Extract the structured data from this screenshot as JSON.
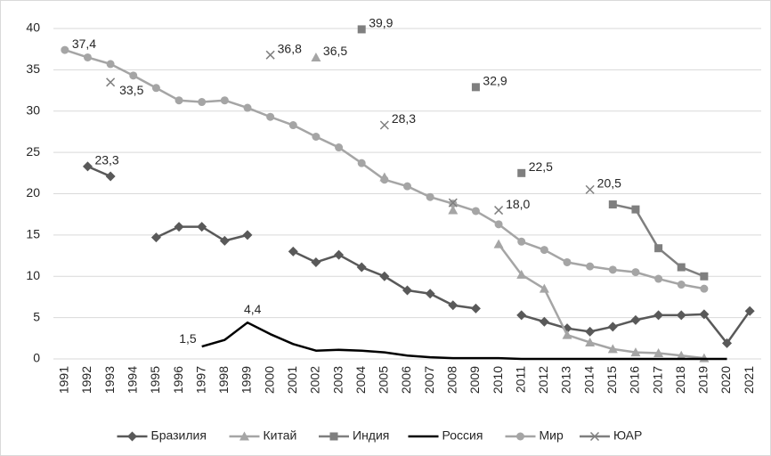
{
  "chart_data": {
    "type": "line",
    "categories": [
      "1991",
      "1992",
      "1993",
      "1994",
      "1995",
      "1996",
      "1997",
      "1998",
      "1999",
      "2000",
      "2001",
      "2002",
      "2003",
      "2004",
      "2005",
      "2006",
      "2007",
      "2008",
      "2009",
      "2010",
      "2011",
      "2012",
      "2013",
      "2014",
      "2015",
      "2016",
      "2017",
      "2018",
      "2019",
      "2020",
      "2021"
    ],
    "ylim": [
      0,
      40
    ],
    "yticks": [
      0,
      5,
      10,
      15,
      20,
      25,
      30,
      35,
      40
    ],
    "grid": true,
    "legend": "bottom",
    "series": [
      {
        "name": "Бразилия",
        "color": "#595959",
        "marker": "diamond",
        "values": [
          null,
          23.3,
          22.1,
          null,
          14.7,
          16.0,
          16.0,
          14.3,
          15.0,
          null,
          13.0,
          11.7,
          12.6,
          11.1,
          10.0,
          8.3,
          7.9,
          6.5,
          6.1,
          null,
          5.3,
          4.5,
          3.7,
          3.3,
          3.9,
          4.7,
          5.3,
          5.3,
          5.4,
          1.9,
          5.8
        ],
        "value_labels": [
          null,
          "23,3",
          null,
          null,
          null,
          null,
          null,
          null,
          null,
          null,
          null,
          null,
          null,
          null,
          null,
          null,
          null,
          null,
          null,
          null,
          null,
          null,
          null,
          null,
          null,
          null,
          null,
          null,
          null,
          null,
          null
        ]
      },
      {
        "name": "Китай",
        "color": "#a5a5a5",
        "marker": "triangle",
        "values": [
          null,
          null,
          null,
          null,
          null,
          null,
          null,
          null,
          null,
          null,
          null,
          36.5,
          null,
          null,
          22.0,
          null,
          null,
          18.0,
          null,
          13.9,
          10.2,
          8.5,
          2.9,
          2.0,
          1.2,
          0.8,
          0.7,
          0.4,
          0.1,
          null,
          null
        ],
        "value_labels": [
          null,
          null,
          null,
          null,
          null,
          null,
          null,
          null,
          null,
          null,
          null,
          "36,5",
          null,
          null,
          null,
          null,
          null,
          null,
          null,
          null,
          null,
          null,
          null,
          null,
          null,
          null,
          null,
          null,
          null,
          null,
          null
        ]
      },
      {
        "name": "Индия",
        "color": "#7f7f7f",
        "marker": "square",
        "values": [
          null,
          null,
          null,
          null,
          null,
          null,
          null,
          null,
          null,
          null,
          null,
          null,
          null,
          39.9,
          null,
          null,
          null,
          null,
          32.9,
          null,
          22.5,
          null,
          null,
          null,
          18.7,
          18.1,
          13.4,
          11.1,
          10.0,
          null,
          null
        ],
        "value_labels": [
          null,
          null,
          null,
          null,
          null,
          null,
          null,
          null,
          null,
          null,
          null,
          null,
          null,
          "39,9",
          null,
          null,
          null,
          null,
          "32,9",
          null,
          "22,5",
          null,
          null,
          null,
          null,
          null,
          null,
          null,
          null,
          null,
          null
        ]
      },
      {
        "name": "Россия",
        "color": "#000000",
        "marker": "none",
        "values": [
          null,
          null,
          null,
          null,
          null,
          null,
          1.5,
          2.3,
          4.4,
          3.0,
          1.8,
          1.0,
          1.1,
          1.0,
          0.8,
          0.4,
          0.2,
          0.1,
          0.1,
          0.1,
          0.0,
          0.0,
          0.0,
          0.0,
          0.0,
          0.0,
          0.0,
          0.0,
          0.0,
          0.0,
          null
        ],
        "value_labels": [
          null,
          null,
          null,
          null,
          null,
          null,
          "1,5",
          null,
          "4,4",
          null,
          null,
          null,
          null,
          null,
          null,
          null,
          null,
          null,
          null,
          null,
          null,
          null,
          null,
          null,
          null,
          null,
          null,
          null,
          null,
          null,
          null
        ]
      },
      {
        "name": "Мир",
        "color": "#a5a5a5",
        "marker": "circle",
        "values": [
          37.4,
          36.5,
          35.7,
          34.3,
          32.8,
          31.3,
          31.1,
          31.3,
          30.4,
          29.3,
          28.3,
          26.9,
          25.6,
          23.7,
          21.7,
          20.9,
          19.6,
          18.8,
          17.9,
          16.3,
          14.2,
          13.2,
          11.7,
          11.2,
          10.8,
          10.5,
          9.7,
          9.0,
          8.5,
          null,
          null
        ],
        "value_labels": [
          "37,4",
          null,
          null,
          null,
          null,
          null,
          null,
          null,
          null,
          null,
          null,
          null,
          null,
          null,
          null,
          null,
          null,
          null,
          null,
          null,
          null,
          null,
          null,
          null,
          null,
          null,
          null,
          null,
          null,
          null,
          null
        ]
      },
      {
        "name": "ЮАР",
        "color": "#7f7f7f",
        "marker": "x",
        "values": [
          null,
          null,
          33.5,
          null,
          null,
          null,
          null,
          null,
          null,
          36.8,
          null,
          null,
          null,
          null,
          28.3,
          null,
          null,
          18.9,
          null,
          18.0,
          null,
          null,
          null,
          20.5,
          null,
          null,
          null,
          null,
          null,
          null,
          null
        ],
        "value_labels": [
          null,
          null,
          "33,5",
          null,
          null,
          null,
          null,
          null,
          null,
          "36,8",
          null,
          null,
          null,
          null,
          "28,3",
          null,
          null,
          null,
          null,
          "18,0",
          null,
          null,
          null,
          "20,5",
          null,
          null,
          null,
          null,
          null,
          null,
          null
        ]
      }
    ]
  }
}
